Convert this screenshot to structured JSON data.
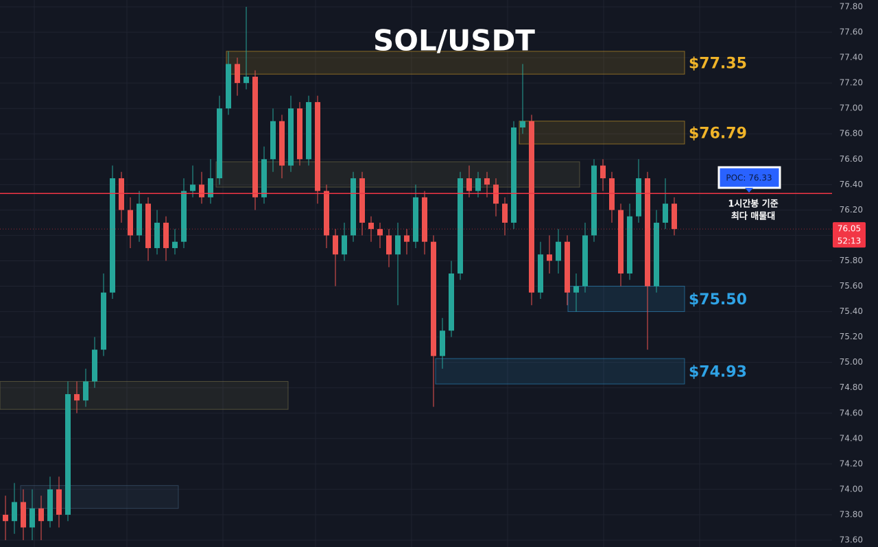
{
  "chart_data": {
    "type": "candlestick",
    "title": "SOL/USDT",
    "up_color": "#26a69a",
    "down_color": "#ef5350",
    "grid": true,
    "ylim": [
      73.6,
      77.8
    ],
    "yticks": [
      {
        "value": 77.8,
        "label": "77.80"
      },
      {
        "value": 77.6,
        "label": "77.60"
      },
      {
        "value": 77.4,
        "label": "77.40"
      },
      {
        "value": 77.2,
        "label": "77.20"
      },
      {
        "value": 77.0,
        "label": "77.00"
      },
      {
        "value": 76.8,
        "label": "76.80"
      },
      {
        "value": 76.6,
        "label": "76.60"
      },
      {
        "value": 76.4,
        "label": "76.40"
      },
      {
        "value": 76.2,
        "label": "76.20"
      },
      {
        "value": 76.0,
        "label": "76.00"
      },
      {
        "value": 75.8,
        "label": "75.80"
      },
      {
        "value": 75.6,
        "label": "75.60"
      },
      {
        "value": 75.4,
        "label": "75.40"
      },
      {
        "value": 75.2,
        "label": "75.20"
      },
      {
        "value": 75.0,
        "label": "75.00"
      },
      {
        "value": 74.8,
        "label": "74.80"
      },
      {
        "value": 74.6,
        "label": "74.60"
      },
      {
        "value": 74.4,
        "label": "74.40"
      },
      {
        "value": 74.2,
        "label": "74.20"
      },
      {
        "value": 74.0,
        "label": "74.00"
      },
      {
        "value": 73.8,
        "label": "73.80"
      },
      {
        "value": 73.6,
        "label": "73.60"
      }
    ],
    "open": [
      73.8,
      73.75,
      73.9,
      73.7,
      73.85,
      73.75,
      74.0,
      73.8,
      74.75,
      74.7,
      74.85,
      75.1,
      75.55,
      76.45,
      76.2,
      76.0,
      76.25,
      75.9,
      76.1,
      75.9,
      75.95,
      76.35,
      76.4,
      76.3,
      76.45,
      77.0,
      77.35,
      77.2,
      77.25,
      76.3,
      76.6,
      76.9,
      76.55,
      77.0,
      76.6,
      77.05,
      76.35,
      76.0,
      75.85,
      76.0,
      76.45,
      76.1,
      76.05,
      76.0,
      75.85,
      76.0,
      75.95,
      76.3,
      75.95,
      75.05,
      75.25,
      75.7,
      76.45,
      76.35,
      76.45,
      76.4,
      76.25,
      76.1,
      76.85,
      76.9,
      75.55,
      75.85,
      75.8,
      75.95,
      75.55,
      75.6,
      76.0,
      76.55,
      76.45,
      76.2,
      75.7,
      76.15,
      76.45,
      75.6,
      76.1,
      76.25
    ],
    "high": [
      73.95,
      74.05,
      74.0,
      74.0,
      73.95,
      74.1,
      74.1,
      74.85,
      74.85,
      74.95,
      75.2,
      75.7,
      76.55,
      76.5,
      76.3,
      76.35,
      76.3,
      76.2,
      76.15,
      76.05,
      76.45,
      76.55,
      76.5,
      76.6,
      77.1,
      77.45,
      77.4,
      77.8,
      77.3,
      76.7,
      77.0,
      76.95,
      77.1,
      77.05,
      77.1,
      77.1,
      76.4,
      76.05,
      76.1,
      76.5,
      76.5,
      76.15,
      76.1,
      76.05,
      76.1,
      76.05,
      76.4,
      76.35,
      76.0,
      75.35,
      75.8,
      76.5,
      76.55,
      76.5,
      76.5,
      76.45,
      76.3,
      76.9,
      77.35,
      76.95,
      75.95,
      76.0,
      76.05,
      76.0,
      75.7,
      76.1,
      76.6,
      76.6,
      76.5,
      76.25,
      76.25,
      76.6,
      76.5,
      76.2,
      76.45,
      76.3
    ],
    "low": [
      73.6,
      73.65,
      73.6,
      73.6,
      73.6,
      73.7,
      73.7,
      73.75,
      74.6,
      74.65,
      74.8,
      75.05,
      75.5,
      76.1,
      75.9,
      75.95,
      75.8,
      75.85,
      75.8,
      75.85,
      75.9,
      76.3,
      76.25,
      76.25,
      76.4,
      76.95,
      77.1,
      77.15,
      76.2,
      76.25,
      76.5,
      76.45,
      76.5,
      76.55,
      76.55,
      76.25,
      75.9,
      75.6,
      75.8,
      75.95,
      76.0,
      75.95,
      75.9,
      75.75,
      75.45,
      75.85,
      75.9,
      75.85,
      74.65,
      74.95,
      75.2,
      75.65,
      76.3,
      76.3,
      76.3,
      76.15,
      76.0,
      76.05,
      76.8,
      75.45,
      75.5,
      75.7,
      75.7,
      75.45,
      75.4,
      75.55,
      75.95,
      76.35,
      76.1,
      75.6,
      75.65,
      76.1,
      75.1,
      75.55,
      76.05,
      76.0
    ],
    "close": [
      73.75,
      73.9,
      73.7,
      73.85,
      73.75,
      74.0,
      73.8,
      74.75,
      74.7,
      74.85,
      75.1,
      75.55,
      76.45,
      76.2,
      76.0,
      76.25,
      75.9,
      76.1,
      75.9,
      75.95,
      76.35,
      76.4,
      76.3,
      76.45,
      77.0,
      77.35,
      77.2,
      77.25,
      76.3,
      76.6,
      76.9,
      76.55,
      77.0,
      76.6,
      77.05,
      76.35,
      76.0,
      75.85,
      76.0,
      76.45,
      76.1,
      76.05,
      76.0,
      75.85,
      76.0,
      75.95,
      76.3,
      75.95,
      75.05,
      75.25,
      75.7,
      76.45,
      76.35,
      76.45,
      76.4,
      76.25,
      76.1,
      76.85,
      76.9,
      75.55,
      75.85,
      75.8,
      75.95,
      75.55,
      75.6,
      76.0,
      76.55,
      76.45,
      76.2,
      75.7,
      76.15,
      76.45,
      75.6,
      76.1,
      76.25,
      76.05
    ],
    "zones": [
      {
        "low": 77.27,
        "high": 77.45,
        "label": "$77.35",
        "color": "#f0b429"
      },
      {
        "low": 76.72,
        "high": 76.9,
        "label": "$76.79",
        "color": "#f0b429"
      },
      {
        "low": 75.4,
        "high": 75.6,
        "label": "$75.50",
        "color": "#2fa3e6"
      },
      {
        "low": 74.83,
        "high": 75.03,
        "label": "$74.93",
        "color": "#2fa3e6"
      },
      {
        "low": 76.38,
        "high": 76.58,
        "color": "#8a8050"
      },
      {
        "low": 74.63,
        "high": 74.85,
        "color": "#8a8050"
      },
      {
        "low": 73.85,
        "high": 74.03,
        "color": "#4a6a8a"
      }
    ],
    "poc": {
      "value": 76.33,
      "label": "POC: 76.33",
      "note": [
        "1시간봉 기준",
        "최다 매물대"
      ],
      "color": "#f23645"
    },
    "last_price": {
      "value": 76.05,
      "countdown": "52:13",
      "color": "#f23645"
    }
  }
}
